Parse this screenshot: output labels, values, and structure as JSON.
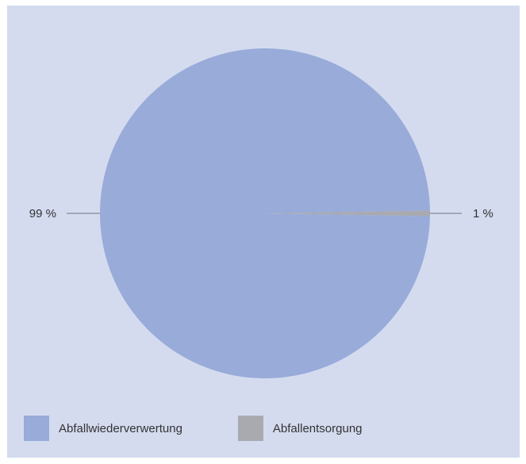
{
  "chart_data": {
    "type": "pie",
    "categories": [
      "Abfallwiederverwertung",
      "Abfallentsorgung"
    ],
    "values": [
      99,
      1
    ],
    "value_labels": [
      "99 %",
      "1 %"
    ],
    "colors": [
      "#98abd9",
      "#a9aab0"
    ],
    "background": "#d4dbef",
    "legend_position": "bottom-left"
  }
}
